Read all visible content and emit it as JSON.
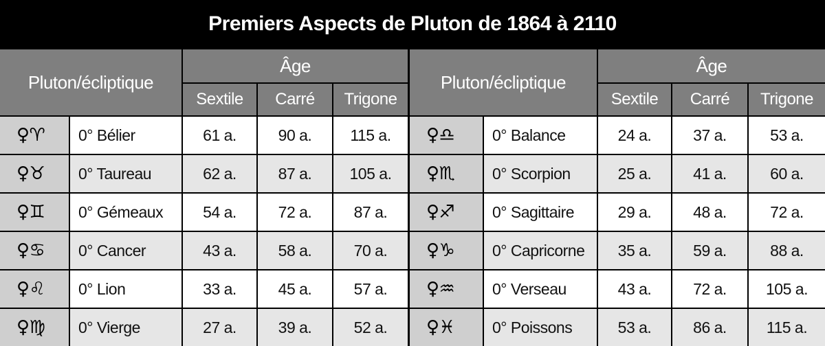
{
  "title": "Premiers Aspects de Pluton de 1864 à 2110",
  "header": {
    "ecliptic": "Pluton/écliptique",
    "age": "Âge",
    "sextile": "Sextile",
    "carre": "Carré",
    "trigone": "Trigone"
  },
  "left_rows": [
    {
      "symbol": "♀♈",
      "sign": "0° Bélier",
      "sextile": "61 a.",
      "carre": "90 a.",
      "trigone": "115 a."
    },
    {
      "symbol": "♀♉",
      "sign": "0° Taureau",
      "sextile": "62 a.",
      "carre": "87 a.",
      "trigone": "105 a."
    },
    {
      "symbol": "♀♊",
      "sign": "0° Gémeaux",
      "sextile": "54 a.",
      "carre": "72 a.",
      "trigone": "87 a."
    },
    {
      "symbol": "♀♋",
      "sign": "0° Cancer",
      "sextile": "43 a.",
      "carre": "58 a.",
      "trigone": "70 a."
    },
    {
      "symbol": "♀♌",
      "sign": "0° Lion",
      "sextile": "33 a.",
      "carre": "45 a.",
      "trigone": "57 a."
    },
    {
      "symbol": "♀♍",
      "sign": "0° Vierge",
      "sextile": "27 a.",
      "carre": "39 a.",
      "trigone": "52 a."
    }
  ],
  "right_rows": [
    {
      "symbol": "♀♎",
      "sign": "0° Balance",
      "sextile": "24 a.",
      "carre": "37 a.",
      "trigone": "53 a."
    },
    {
      "symbol": "♀♏",
      "sign": "0° Scorpion",
      "sextile": "25 a.",
      "carre": "41 a.",
      "trigone": "60 a."
    },
    {
      "symbol": "♀♐",
      "sign": "0° Sagittaire",
      "sextile": "29 a.",
      "carre": "48 a.",
      "trigone": "72 a."
    },
    {
      "symbol": "♀♑",
      "sign": "0° Capricorne",
      "sextile": "35 a.",
      "carre": "59 a.",
      "trigone": "88 a."
    },
    {
      "symbol": "♀♒",
      "sign": "0° Verseau",
      "sextile": "43 a.",
      "carre": "72 a.",
      "trigone": "105 a."
    },
    {
      "symbol": "♀♓",
      "sign": "0° Poissons",
      "sextile": "53 a.",
      "carre": "86 a.",
      "trigone": "115 a."
    }
  ]
}
